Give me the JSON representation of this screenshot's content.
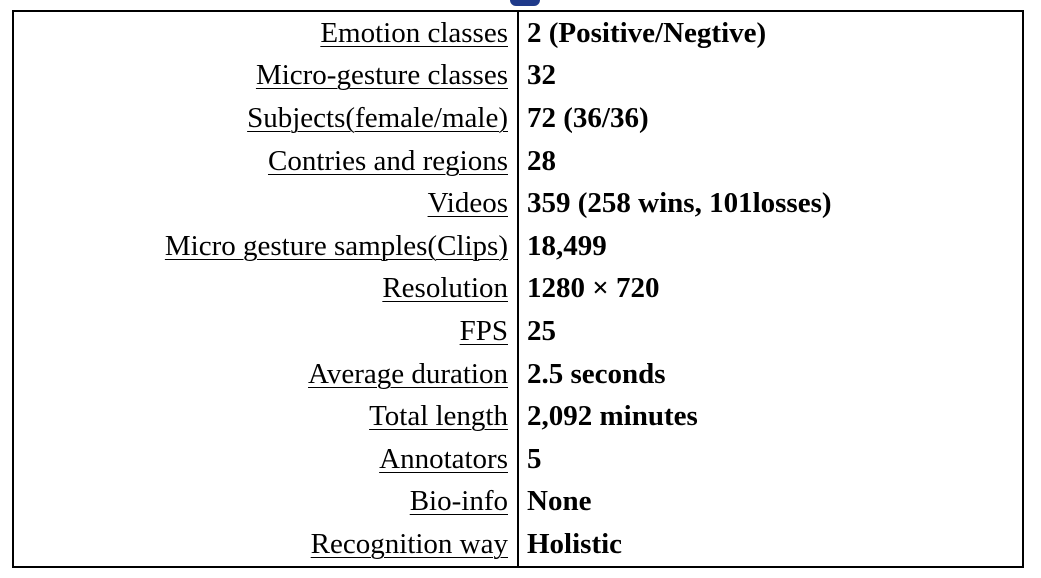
{
  "table": {
    "rows": [
      {
        "label": "Emotion classes",
        "value": "2 (Positive/Negtive)"
      },
      {
        "label": "Micro-gesture classes",
        "value": "32"
      },
      {
        "label": "Subjects(female/male)",
        "value": "72 (36/36)"
      },
      {
        "label": "Contries and regions",
        "value": "28"
      },
      {
        "label": "Videos",
        "value": "359 (258 wins, 101losses)"
      },
      {
        "label": "Micro gesture samples(Clips)",
        "value": "18,499"
      },
      {
        "label": "Resolution",
        "value": "1280 × 720"
      },
      {
        "label": "FPS",
        "value": "25"
      },
      {
        "label": "Average duration",
        "value": "2.5 seconds"
      },
      {
        "label": "Total length",
        "value": "2,092 minutes"
      },
      {
        "label": "Annotators",
        "value": "5"
      },
      {
        "label": "Bio-info",
        "value": "None"
      },
      {
        "label": "Recognition way",
        "value": "Holistic"
      }
    ]
  }
}
